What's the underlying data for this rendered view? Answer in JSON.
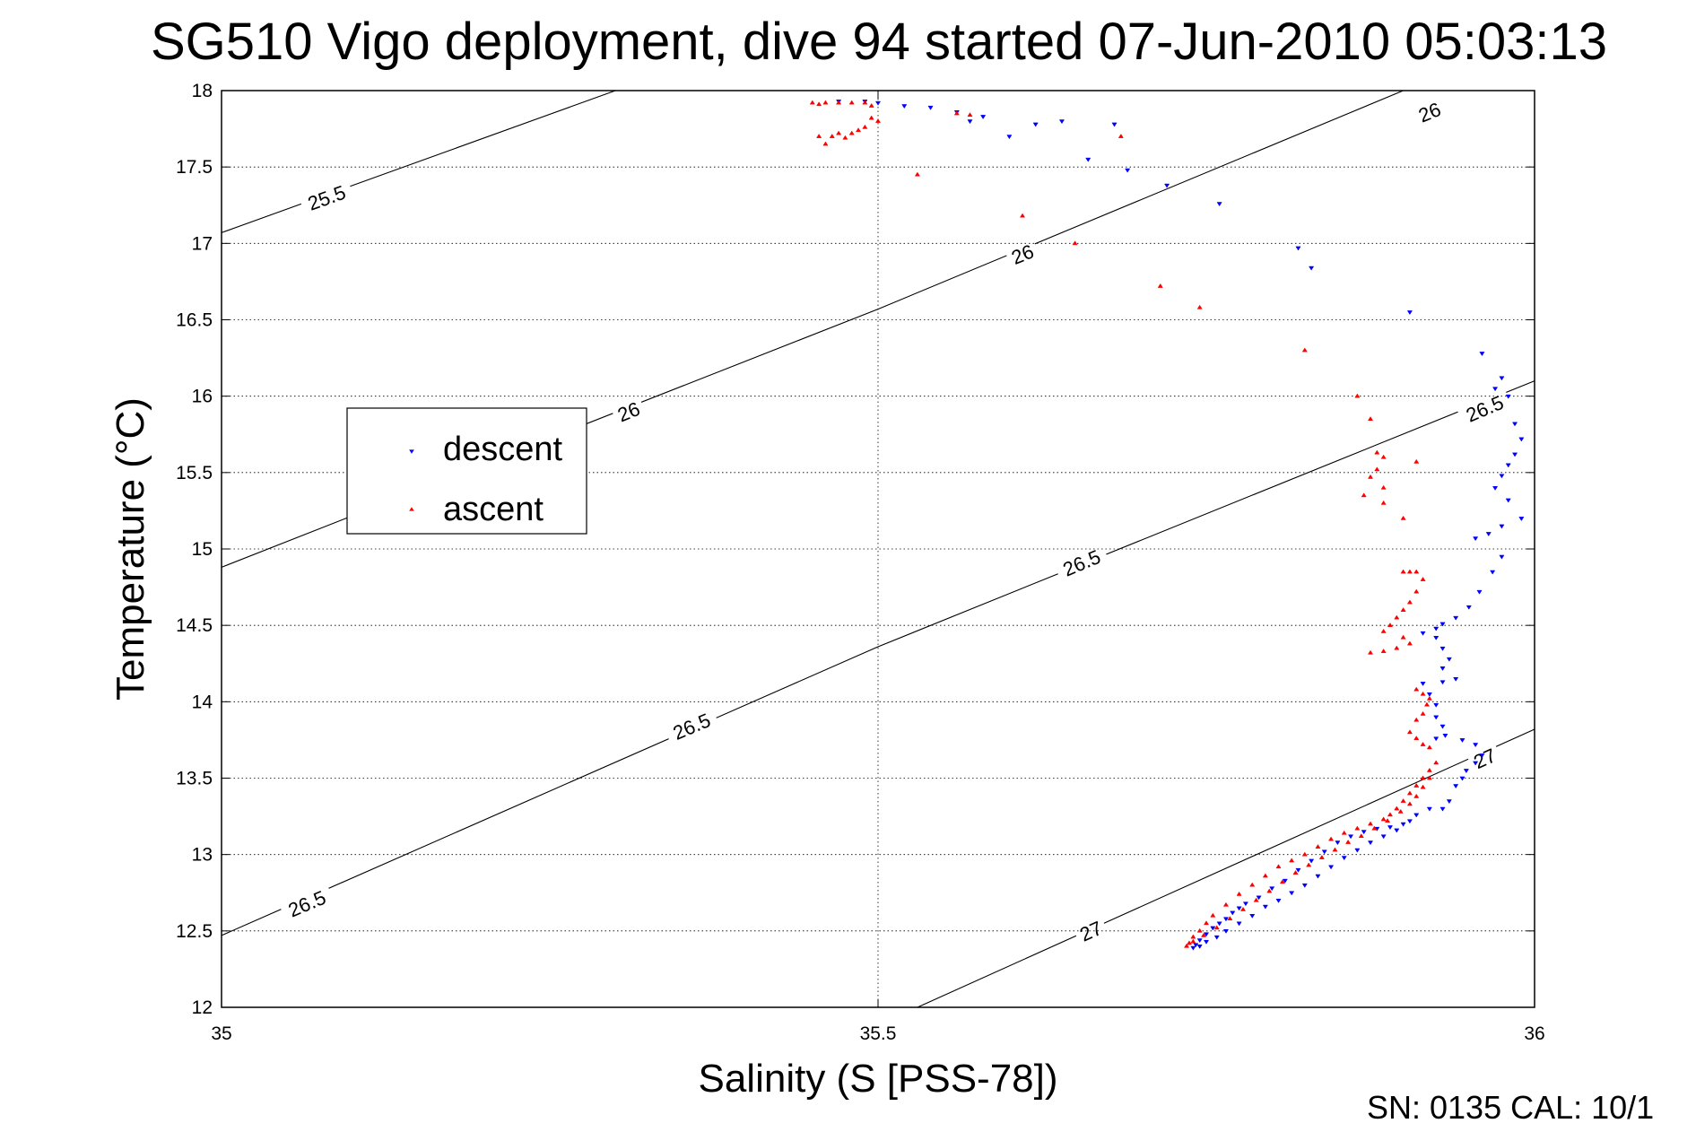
{
  "chart_data": {
    "type": "scatter",
    "title": "SG510 Vigo deployment, dive 94 started 07-Jun-2010 05:03:13",
    "xlabel": "Salinity (S [PSS-78])",
    "ylabel": "Temperature (°C)",
    "xlim": [
      35,
      36
    ],
    "ylim": [
      12,
      18
    ],
    "xticks": [
      35,
      35.5,
      36
    ],
    "xtick_labels": [
      "35",
      "35.5",
      "36"
    ],
    "yticks": [
      12,
      12.5,
      13,
      13.5,
      14,
      14.5,
      15,
      15.5,
      16,
      16.5,
      17,
      17.5,
      18
    ],
    "ytick_labels": [
      "12",
      "12.5",
      "13",
      "13.5",
      "14",
      "14.5",
      "15",
      "15.5",
      "16",
      "16.5",
      "17",
      "17.5",
      "18"
    ],
    "grid": true,
    "legend": {
      "position": "upper-left",
      "entries": [
        "descent",
        "ascent"
      ]
    },
    "footer": "SN: 0135  CAL: 10/1",
    "density_contours": [
      {
        "sigma": "25.5",
        "points": [
          [
            35,
            17.07
          ],
          [
            35.3,
            18.0
          ]
        ],
        "labels": [
          {
            "text": "25.5",
            "s": 35.08,
            "t": 17.3
          }
        ]
      },
      {
        "sigma": "26",
        "points": [
          [
            35,
            14.88
          ],
          [
            35.5,
            16.57
          ],
          [
            35.9,
            18.0
          ]
        ],
        "labels": [
          {
            "text": "26",
            "s": 35.31,
            "t": 15.9
          },
          {
            "text": "26",
            "s": 35.61,
            "t": 16.93
          },
          {
            "text": "26",
            "s": 35.92,
            "t": 17.86
          }
        ]
      },
      {
        "sigma": "26.5",
        "points": [
          [
            35,
            12.47
          ],
          [
            35.5,
            14.36
          ],
          [
            36,
            16.1
          ]
        ],
        "labels": [
          {
            "text": "26.5",
            "s": 35.065,
            "t": 12.68
          },
          {
            "text": "26.5",
            "s": 35.358,
            "t": 13.84
          },
          {
            "text": "26.5",
            "s": 35.655,
            "t": 14.91
          },
          {
            "text": "26.5",
            "s": 35.962,
            "t": 15.92
          }
        ]
      },
      {
        "sigma": "27",
        "points": [
          [
            35.53,
            12.0
          ],
          [
            36,
            13.82
          ]
        ],
        "labels": [
          {
            "text": "27",
            "s": 35.662,
            "t": 12.5
          },
          {
            "text": "27",
            "s": 35.962,
            "t": 13.63
          }
        ]
      }
    ],
    "series": [
      {
        "name": "descent",
        "color": "#0000ff",
        "marker": "triangle-down",
        "points": [
          [
            35.47,
            17.93
          ],
          [
            35.49,
            17.93
          ],
          [
            35.5,
            17.92
          ],
          [
            35.52,
            17.9
          ],
          [
            35.54,
            17.89
          ],
          [
            35.56,
            17.86
          ],
          [
            35.57,
            17.8
          ],
          [
            35.58,
            17.83
          ],
          [
            35.6,
            17.7
          ],
          [
            35.62,
            17.78
          ],
          [
            35.64,
            17.8
          ],
          [
            35.68,
            17.78
          ],
          [
            35.66,
            17.55
          ],
          [
            35.69,
            17.48
          ],
          [
            35.72,
            17.38
          ],
          [
            35.76,
            17.26
          ],
          [
            35.82,
            16.97
          ],
          [
            35.83,
            16.84
          ],
          [
            35.905,
            16.55
          ],
          [
            35.96,
            16.28
          ],
          [
            35.97,
            16.05
          ],
          [
            35.975,
            16.12
          ],
          [
            35.98,
            16.0
          ],
          [
            35.985,
            15.82
          ],
          [
            35.99,
            15.72
          ],
          [
            35.985,
            15.62
          ],
          [
            35.98,
            15.55
          ],
          [
            35.975,
            15.48
          ],
          [
            35.97,
            15.4
          ],
          [
            35.98,
            15.32
          ],
          [
            35.99,
            15.2
          ],
          [
            35.975,
            15.15
          ],
          [
            35.965,
            15.1
          ],
          [
            35.955,
            15.07
          ],
          [
            35.975,
            14.95
          ],
          [
            35.968,
            14.85
          ],
          [
            35.958,
            14.72
          ],
          [
            35.95,
            14.62
          ],
          [
            35.94,
            14.55
          ],
          [
            35.93,
            14.51
          ],
          [
            35.925,
            14.48
          ],
          [
            35.915,
            14.45
          ],
          [
            35.925,
            14.42
          ],
          [
            35.93,
            14.35
          ],
          [
            35.935,
            14.28
          ],
          [
            35.93,
            14.22
          ],
          [
            35.94,
            14.15
          ],
          [
            35.93,
            14.13
          ],
          [
            35.915,
            14.12
          ],
          [
            35.92,
            14.05
          ],
          [
            35.925,
            13.98
          ],
          [
            35.925,
            13.9
          ],
          [
            35.93,
            13.84
          ],
          [
            35.932,
            13.78
          ],
          [
            35.925,
            13.76
          ],
          [
            35.945,
            13.75
          ],
          [
            35.955,
            13.72
          ],
          [
            35.96,
            13.65
          ],
          [
            35.955,
            13.6
          ],
          [
            35.948,
            13.55
          ],
          [
            35.945,
            13.5
          ],
          [
            35.94,
            13.45
          ],
          [
            35.935,
            13.35
          ],
          [
            35.93,
            13.3
          ],
          [
            35.92,
            13.3
          ],
          [
            35.91,
            13.26
          ],
          [
            35.905,
            13.22
          ],
          [
            35.9,
            13.2
          ],
          [
            35.89,
            13.18
          ],
          [
            35.88,
            13.17
          ],
          [
            35.87,
            13.15
          ],
          [
            35.86,
            13.12
          ],
          [
            35.85,
            13.08
          ],
          [
            35.84,
            13.02
          ],
          [
            35.83,
            12.96
          ],
          [
            35.82,
            12.9
          ],
          [
            35.81,
            12.83
          ],
          [
            35.8,
            12.78
          ],
          [
            35.79,
            12.72
          ],
          [
            35.78,
            12.68
          ],
          [
            35.775,
            12.65
          ],
          [
            35.77,
            12.62
          ],
          [
            35.765,
            12.58
          ],
          [
            35.76,
            12.55
          ],
          [
            35.755,
            12.52
          ],
          [
            35.75,
            12.48
          ],
          [
            35.745,
            12.44
          ],
          [
            35.742,
            12.41
          ],
          [
            35.74,
            12.39
          ],
          [
            35.745,
            12.4
          ],
          [
            35.75,
            12.43
          ],
          [
            35.758,
            12.46
          ],
          [
            35.765,
            12.5
          ],
          [
            35.775,
            12.55
          ],
          [
            35.785,
            12.6
          ],
          [
            35.795,
            12.66
          ],
          [
            35.805,
            12.7
          ],
          [
            35.815,
            12.75
          ],
          [
            35.825,
            12.8
          ],
          [
            35.835,
            12.86
          ],
          [
            35.845,
            12.92
          ],
          [
            35.855,
            12.98
          ],
          [
            35.865,
            13.03
          ],
          [
            35.875,
            13.08
          ],
          [
            35.885,
            13.12
          ],
          [
            35.895,
            13.16
          ]
        ]
      },
      {
        "name": "ascent",
        "color": "#ff0000",
        "marker": "triangle-up",
        "points": [
          [
            35.45,
            17.92
          ],
          [
            35.455,
            17.91
          ],
          [
            35.46,
            17.92
          ],
          [
            35.47,
            17.92
          ],
          [
            35.48,
            17.92
          ],
          [
            35.49,
            17.92
          ],
          [
            35.495,
            17.9
          ],
          [
            35.495,
            17.82
          ],
          [
            35.49,
            17.76
          ],
          [
            35.485,
            17.74
          ],
          [
            35.48,
            17.72
          ],
          [
            35.475,
            17.69
          ],
          [
            35.47,
            17.72
          ],
          [
            35.465,
            17.7
          ],
          [
            35.46,
            17.65
          ],
          [
            35.455,
            17.7
          ],
          [
            35.5,
            17.8
          ],
          [
            35.53,
            17.45
          ],
          [
            35.56,
            17.85
          ],
          [
            35.57,
            17.84
          ],
          [
            35.61,
            17.18
          ],
          [
            35.65,
            17.0
          ],
          [
            35.685,
            17.7
          ],
          [
            35.715,
            16.72
          ],
          [
            35.745,
            16.58
          ],
          [
            35.825,
            16.3
          ],
          [
            35.865,
            16.0
          ],
          [
            35.875,
            15.85
          ],
          [
            35.88,
            15.63
          ],
          [
            35.885,
            15.6
          ],
          [
            35.88,
            15.52
          ],
          [
            35.875,
            15.47
          ],
          [
            35.885,
            15.4
          ],
          [
            35.87,
            15.35
          ],
          [
            35.885,
            15.3
          ],
          [
            35.91,
            15.57
          ],
          [
            35.9,
            15.2
          ],
          [
            35.9,
            14.85
          ],
          [
            35.905,
            14.85
          ],
          [
            35.91,
            14.85
          ],
          [
            35.915,
            14.8
          ],
          [
            35.91,
            14.72
          ],
          [
            35.905,
            14.65
          ],
          [
            35.9,
            14.6
          ],
          [
            35.895,
            14.55
          ],
          [
            35.89,
            14.5
          ],
          [
            35.885,
            14.46
          ],
          [
            35.9,
            14.42
          ],
          [
            35.905,
            14.38
          ],
          [
            35.895,
            14.35
          ],
          [
            35.885,
            14.33
          ],
          [
            35.875,
            14.32
          ],
          [
            35.91,
            14.08
          ],
          [
            35.915,
            14.05
          ],
          [
            35.92,
            14.02
          ],
          [
            35.918,
            13.98
          ],
          [
            35.915,
            13.92
          ],
          [
            35.91,
            13.88
          ],
          [
            35.905,
            13.8
          ],
          [
            35.91,
            13.76
          ],
          [
            35.915,
            13.72
          ],
          [
            35.92,
            13.7
          ],
          [
            35.925,
            13.6
          ],
          [
            35.92,
            13.55
          ],
          [
            35.915,
            13.5
          ],
          [
            35.91,
            13.45
          ],
          [
            35.905,
            13.4
          ],
          [
            35.9,
            13.35
          ],
          [
            35.895,
            13.3
          ],
          [
            35.89,
            13.26
          ],
          [
            35.885,
            13.23
          ],
          [
            35.875,
            13.2
          ],
          [
            35.865,
            13.17
          ],
          [
            35.855,
            13.14
          ],
          [
            35.845,
            13.1
          ],
          [
            35.835,
            13.05
          ],
          [
            35.825,
            13.0
          ],
          [
            35.815,
            12.96
          ],
          [
            35.805,
            12.92
          ],
          [
            35.795,
            12.86
          ],
          [
            35.785,
            12.8
          ],
          [
            35.775,
            12.74
          ],
          [
            35.765,
            12.67
          ],
          [
            35.755,
            12.6
          ],
          [
            35.75,
            12.55
          ],
          [
            35.745,
            12.5
          ],
          [
            35.74,
            12.46
          ],
          [
            35.737,
            12.42
          ],
          [
            35.735,
            12.4
          ],
          [
            35.74,
            12.43
          ],
          [
            35.748,
            12.47
          ],
          [
            35.758,
            12.52
          ],
          [
            35.768,
            12.58
          ],
          [
            35.778,
            12.64
          ],
          [
            35.788,
            12.7
          ],
          [
            35.798,
            12.76
          ],
          [
            35.808,
            12.82
          ],
          [
            35.818,
            12.88
          ],
          [
            35.828,
            12.93
          ],
          [
            35.838,
            12.98
          ],
          [
            35.848,
            13.03
          ],
          [
            35.858,
            13.08
          ],
          [
            35.868,
            13.12
          ],
          [
            35.878,
            13.17
          ],
          [
            35.888,
            13.22
          ],
          [
            35.898,
            13.28
          ],
          [
            35.905,
            13.33
          ],
          [
            35.91,
            13.38
          ],
          [
            35.915,
            13.44
          ],
          [
            35.92,
            13.5
          ]
        ]
      }
    ]
  }
}
